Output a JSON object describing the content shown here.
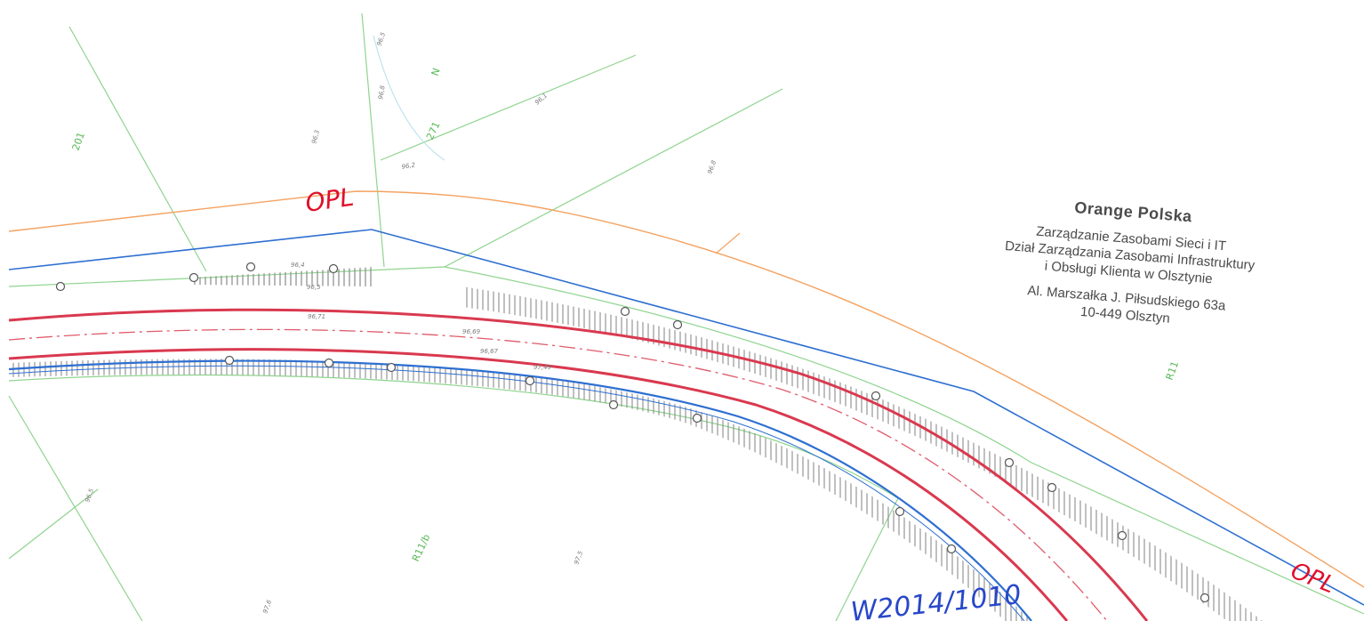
{
  "stamp": {
    "company": "Orange Polska",
    "line1": "Zarządzanie Zasobami Sieci i IT",
    "line2": "Dział Zarządzania Zasobami Infrastruktury",
    "line3": "i Obsługi Klienta w Olsztynie",
    "address1": "Al. Marszałka J. Piłsudskiego 63a",
    "address2": "10-449 Olsztyn"
  },
  "annotations": {
    "opl_left": "OPL",
    "opl_right": "OPL",
    "bottom_handwriting": "W2014/1010"
  },
  "parcel_labels": {
    "p201": "201",
    "p271": "271",
    "north": "N",
    "r11b": "R11/b",
    "r11": "R11"
  },
  "elevations": {
    "e1": "96,5",
    "e2": "96,8",
    "e3": "96,3",
    "e4": "96,2",
    "e5": "96,1",
    "e6": "96,8",
    "e7": "96,4",
    "e8": "96,5",
    "e9": "96,71",
    "e10": "96,69",
    "e11": "96,67",
    "e12": "97,49",
    "e13": "97,5",
    "e14": "97,6",
    "e15": "96,5"
  },
  "colors": {
    "parcel_lines": "#8fd48f",
    "telecom_line": "#f4a261",
    "road_edge": "#d9394f",
    "road_axis": "#e05b6b",
    "pipe_blue": "#2e6fd1",
    "hatch": "#8a8a8a",
    "opl_ink": "#e0102a",
    "blue_ink": "#2747c9"
  }
}
